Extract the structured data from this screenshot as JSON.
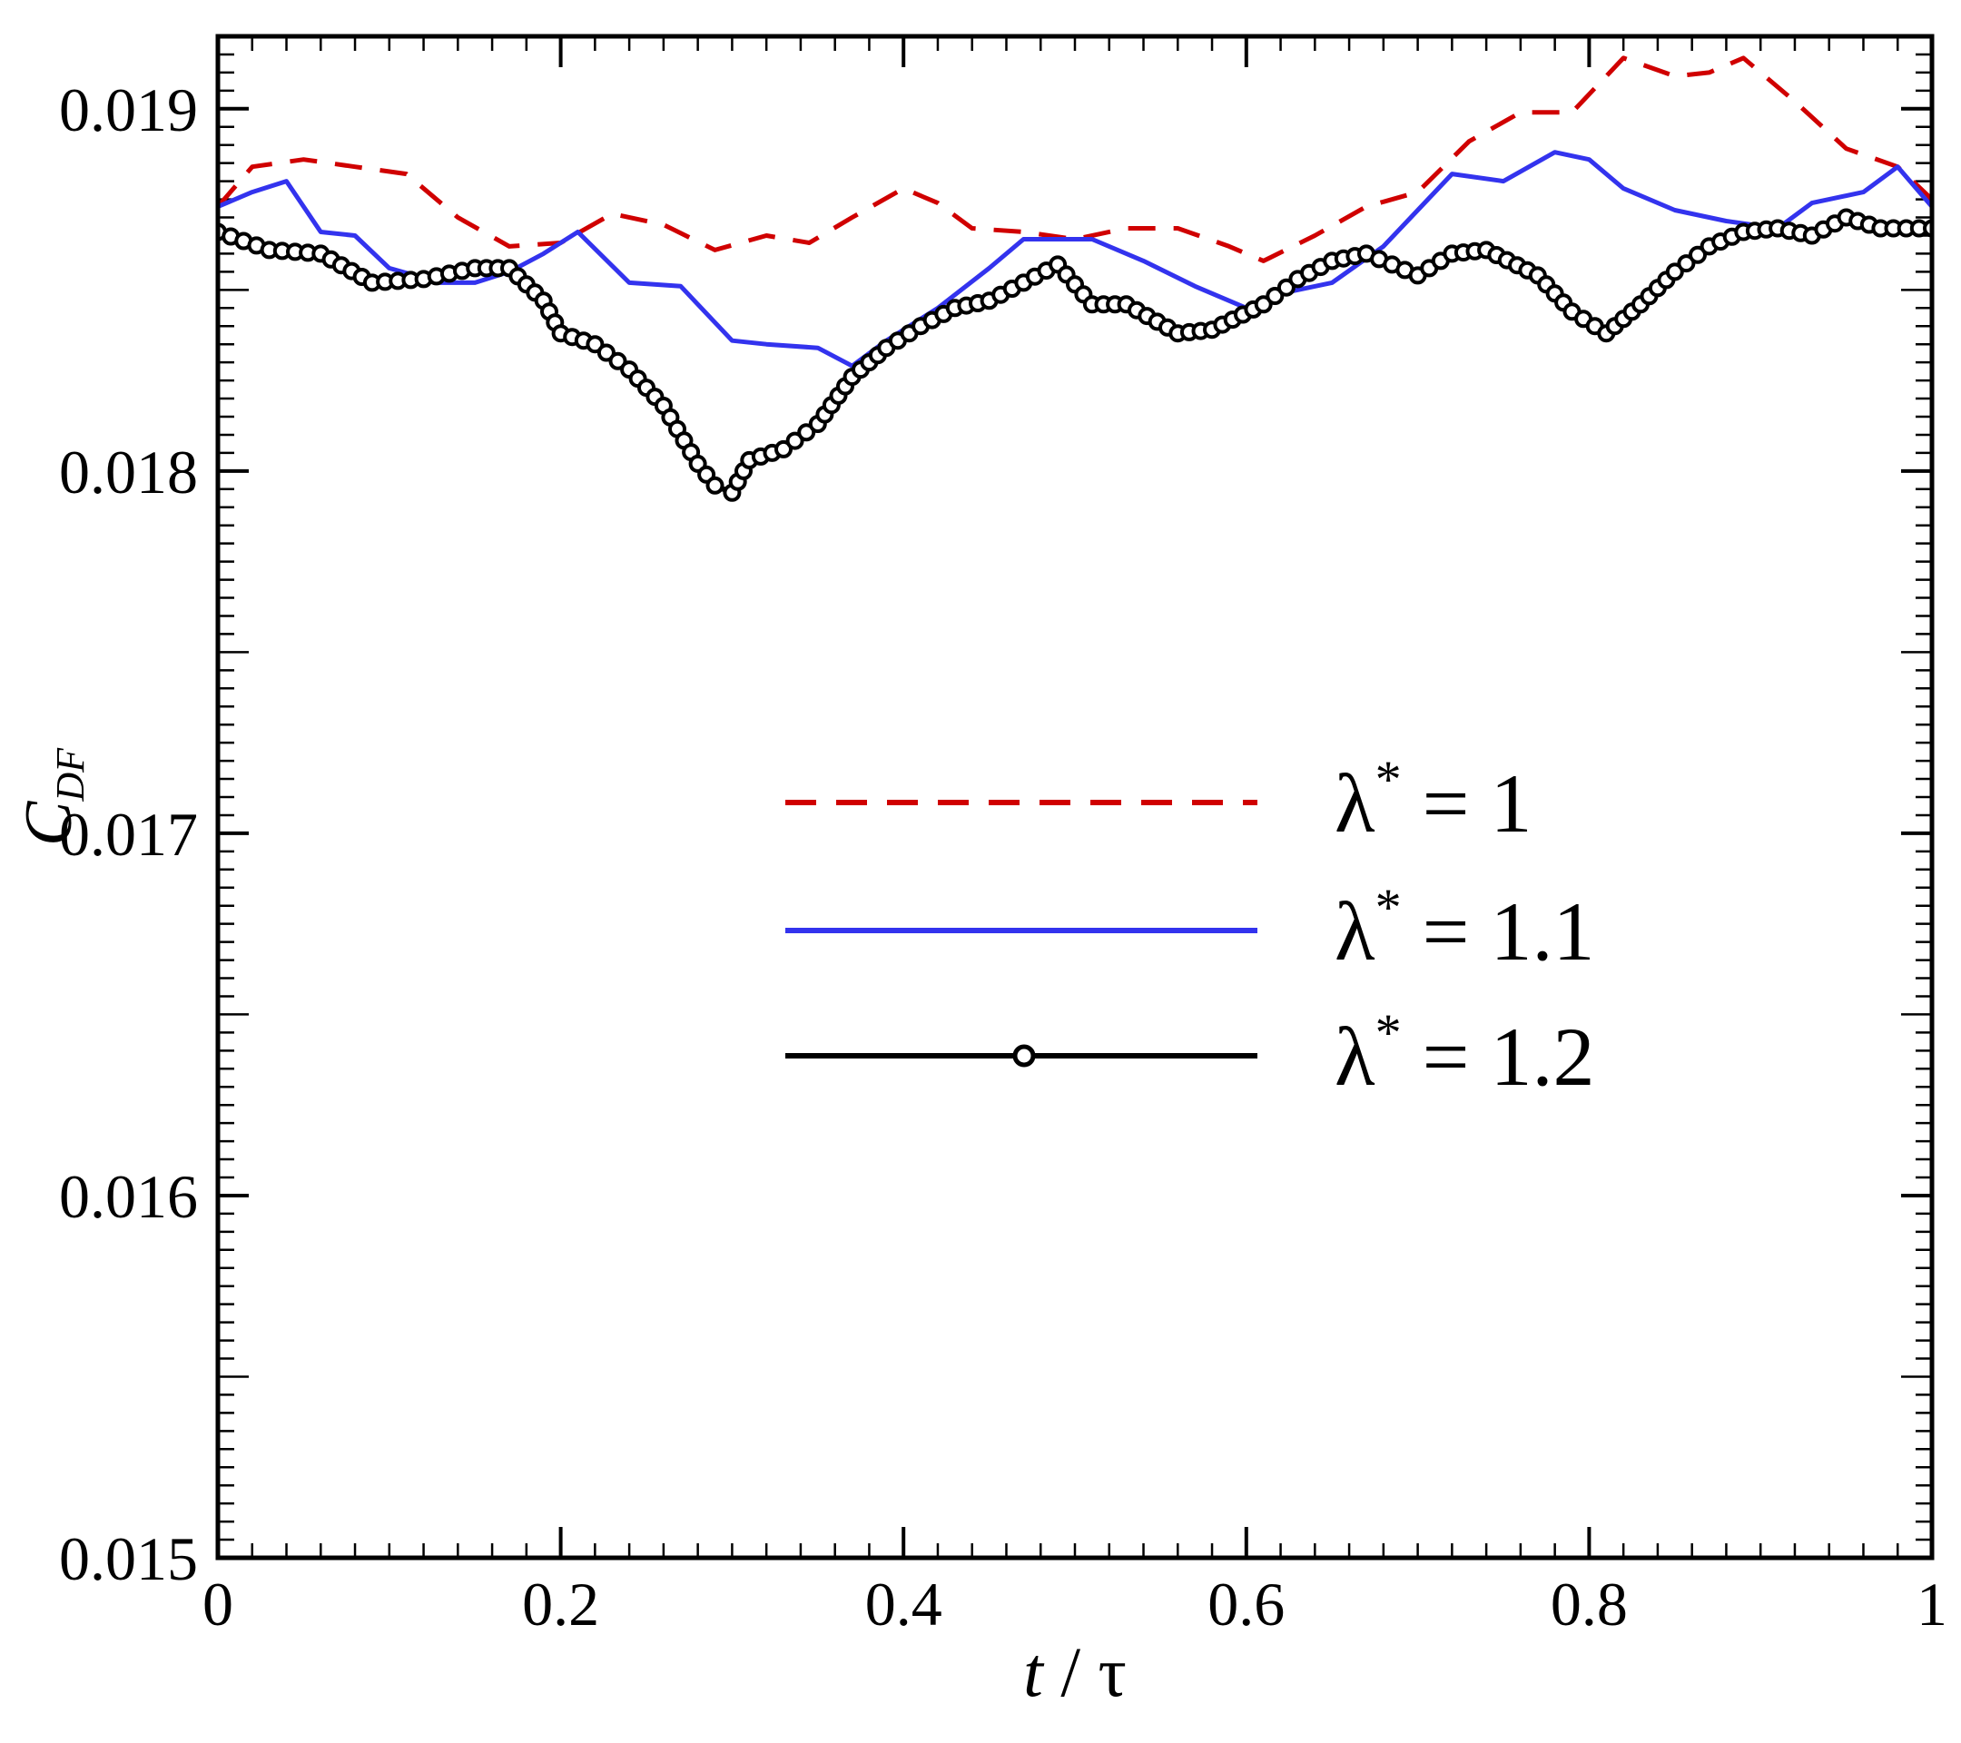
{
  "chart_data": {
    "type": "line",
    "xlabel": {
      "var": "t",
      "sep": " / ",
      "unit": "τ"
    },
    "ylabel": {
      "main": "C",
      "sub": "DF"
    },
    "xlim": [
      0,
      1
    ],
    "ylim": [
      0.015,
      0.0192
    ],
    "x_ticks": [
      "0",
      "0.2",
      "0.4",
      "0.6",
      "0.8",
      "1"
    ],
    "y_ticks": [
      "0.015",
      "0.016",
      "0.017",
      "0.018",
      "0.019"
    ],
    "grid": false,
    "legend_position": "center-right",
    "series": [
      {
        "name": "λ* = 1",
        "legend": {
          "sym": "λ",
          "sup": "*",
          "rest": " = 1"
        },
        "color": "#d00000",
        "style": "dashed",
        "marker": "none",
        "x": [
          0,
          0.02,
          0.05,
          0.08,
          0.11,
          0.14,
          0.17,
          0.2,
          0.23,
          0.26,
          0.29,
          0.32,
          0.345,
          0.37,
          0.4,
          0.42,
          0.44,
          0.47,
          0.5,
          0.53,
          0.56,
          0.59,
          0.61,
          0.64,
          0.67,
          0.7,
          0.73,
          0.76,
          0.79,
          0.82,
          0.85,
          0.87,
          0.89,
          0.92,
          0.95,
          0.98,
          1.0
        ],
        "y": [
          0.01873,
          0.01884,
          0.01886,
          0.01884,
          0.01882,
          0.0187,
          0.01862,
          0.01863,
          0.01871,
          0.01868,
          0.01861,
          0.01865,
          0.01863,
          0.0187,
          0.01878,
          0.01874,
          0.01867,
          0.01866,
          0.01864,
          0.01867,
          0.01867,
          0.01862,
          0.01858,
          0.01865,
          0.01873,
          0.01877,
          0.01891,
          0.01899,
          0.01899,
          0.01914,
          0.01909,
          0.0191,
          0.01914,
          0.01902,
          0.01889,
          0.01884,
          0.01875
        ]
      },
      {
        "name": "λ* = 1.1",
        "legend": {
          "sym": "λ",
          "sup": "*",
          "rest": " = 1.1"
        },
        "color": "#3333ee",
        "style": "solid",
        "marker": "none",
        "x": [
          0,
          0.02,
          0.04,
          0.06,
          0.08,
          0.1,
          0.13,
          0.15,
          0.17,
          0.19,
          0.21,
          0.24,
          0.27,
          0.3,
          0.32,
          0.35,
          0.37,
          0.39,
          0.42,
          0.45,
          0.47,
          0.49,
          0.51,
          0.54,
          0.57,
          0.6,
          0.62,
          0.65,
          0.68,
          0.7,
          0.72,
          0.75,
          0.78,
          0.8,
          0.82,
          0.85,
          0.88,
          0.91,
          0.93,
          0.96,
          0.98,
          1.0
        ],
        "y": [
          0.01873,
          0.01877,
          0.0188,
          0.01866,
          0.01865,
          0.01856,
          0.01852,
          0.01852,
          0.01855,
          0.0186,
          0.01866,
          0.01852,
          0.01851,
          0.01836,
          0.01835,
          0.01834,
          0.01829,
          0.01836,
          0.01845,
          0.01856,
          0.01864,
          0.01864,
          0.01864,
          0.01858,
          0.01851,
          0.01845,
          0.01849,
          0.01852,
          0.01862,
          0.01872,
          0.01882,
          0.0188,
          0.01888,
          0.01886,
          0.01878,
          0.01872,
          0.01869,
          0.01867,
          0.01874,
          0.01877,
          0.01884,
          0.01873
        ]
      },
      {
        "name": "λ* = 1.2",
        "legend": {
          "sym": "λ",
          "sup": "*",
          "rest": " = 1.2"
        },
        "color": "#000000",
        "style": "solid",
        "marker": "circle",
        "x": [
          0,
          0.03,
          0.06,
          0.09,
          0.12,
          0.15,
          0.17,
          0.19,
          0.2,
          0.22,
          0.24,
          0.26,
          0.28,
          0.29,
          0.3,
          0.31,
          0.33,
          0.35,
          0.37,
          0.39,
          0.41,
          0.43,
          0.45,
          0.47,
          0.49,
          0.51,
          0.53,
          0.56,
          0.58,
          0.61,
          0.63,
          0.65,
          0.67,
          0.7,
          0.72,
          0.74,
          0.77,
          0.79,
          0.81,
          0.83,
          0.85,
          0.87,
          0.89,
          0.91,
          0.93,
          0.95,
          0.97,
          1.0
        ],
        "y": [
          0.01866,
          0.01861,
          0.0186,
          0.01852,
          0.01853,
          0.01856,
          0.01856,
          0.01847,
          0.01838,
          0.01835,
          0.01828,
          0.01818,
          0.01802,
          0.01796,
          0.01794,
          0.01803,
          0.01806,
          0.01813,
          0.01826,
          0.01834,
          0.0184,
          0.01845,
          0.01847,
          0.01852,
          0.01857,
          0.01846,
          0.01846,
          0.01838,
          0.01839,
          0.01846,
          0.01853,
          0.01858,
          0.0186,
          0.01854,
          0.0186,
          0.01861,
          0.01854,
          0.01844,
          0.01838,
          0.01846,
          0.01855,
          0.01862,
          0.01866,
          0.01867,
          0.01865,
          0.0187,
          0.01867,
          0.01867
        ]
      }
    ]
  }
}
